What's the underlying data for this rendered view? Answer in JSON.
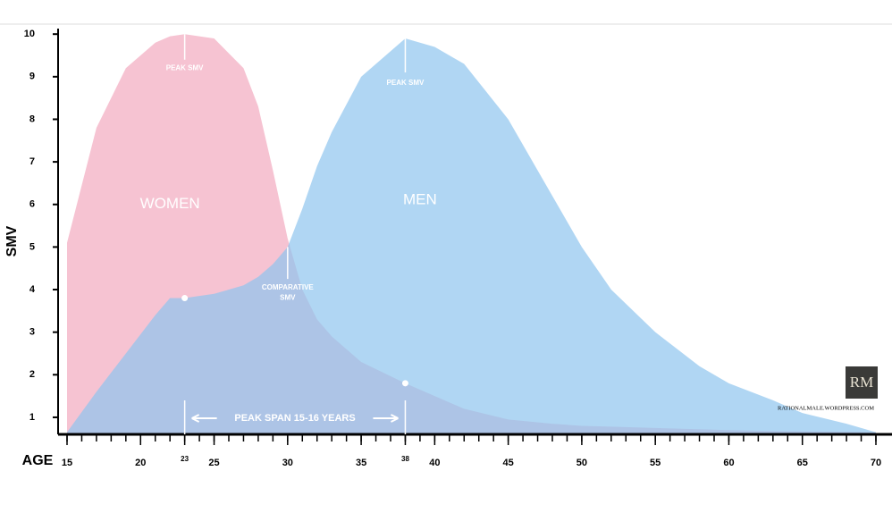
{
  "chart_data": {
    "type": "area",
    "ylabel": "SMV",
    "xlabel": "AGE",
    "x": [
      15,
      17,
      19,
      21,
      22,
      23,
      25,
      27,
      28,
      29,
      30,
      31,
      32,
      33,
      35,
      38,
      40,
      42,
      45,
      48,
      50,
      52,
      55,
      58,
      60,
      63,
      65,
      68,
      70
    ],
    "series": [
      {
        "name": "WOMEN",
        "color": "#f6c3d2",
        "values": [
          5.1,
          7.8,
          9.2,
          9.8,
          9.95,
          10,
          9.9,
          9.2,
          8.3,
          6.8,
          5.2,
          4.0,
          3.3,
          2.9,
          2.3,
          1.8,
          1.5,
          1.2,
          0.95,
          0.85,
          0.8,
          0.78,
          0.75,
          0.72,
          0.7,
          0.68,
          0.67,
          0.66,
          0.65
        ]
      },
      {
        "name": "MEN",
        "color": "#8fc5ee",
        "values": [
          0.65,
          1.6,
          2.5,
          3.4,
          3.8,
          3.8,
          3.9,
          4.1,
          4.3,
          4.6,
          5.0,
          5.9,
          6.9,
          7.7,
          9.0,
          9.9,
          9.7,
          9.3,
          8.0,
          6.2,
          5.0,
          4.0,
          3.0,
          2.2,
          1.8,
          1.4,
          1.1,
          0.85,
          0.65
        ]
      }
    ],
    "xlim": [
      15,
      70
    ],
    "xticks": [
      15,
      20,
      23,
      25,
      30,
      35,
      38,
      40,
      45,
      50,
      55,
      60,
      65,
      70
    ],
    "minor_xtick_step": 1,
    "ylim": [
      0.6,
      10.13
    ],
    "yticks": [
      1,
      2,
      3,
      4,
      5,
      6,
      7,
      8,
      9,
      10
    ],
    "annotations": [
      {
        "text": "WOMEN",
        "x": 22,
        "y": 6.0,
        "size": "large"
      },
      {
        "text": "MEN",
        "x": 39,
        "y": 6.1,
        "size": "large"
      },
      {
        "text": "PEAK SMV",
        "x": 23,
        "y": 9.2,
        "size": "small"
      },
      {
        "text": "PEAK SMV",
        "x": 38,
        "y": 8.85,
        "size": "small"
      },
      {
        "text": "COMPARATIVE",
        "x": 30,
        "y": 4.05,
        "size": "small"
      },
      {
        "text": "SMV",
        "x": 30,
        "y": 3.8,
        "size": "small"
      }
    ],
    "markers": [
      {
        "x": 23,
        "y": 3.8
      },
      {
        "x": 38,
        "y": 1.8
      }
    ],
    "peak_span": {
      "label": "PEAK SPAN 15-16 YEARS",
      "start": 23,
      "end": 38
    },
    "logo": "RM",
    "source": "RATIONALMALE.WORDPRESS.COM"
  }
}
